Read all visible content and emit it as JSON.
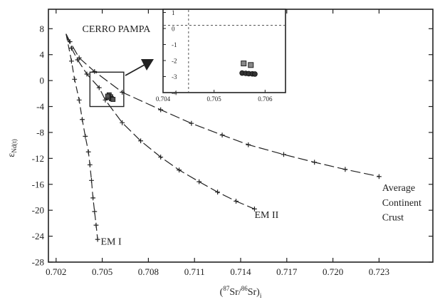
{
  "chart_data": [
    {
      "type": "line",
      "title": "",
      "xlabel_parts": {
        "prefix": "(",
        "sup1": "87",
        "mid": "Sr/",
        "sup2": "86",
        "tail": "Sr)",
        "sub": "i"
      },
      "ylabel_parts": {
        "main": "ε",
        "sub": "Nd(t)"
      },
      "xlim": [
        0.7015,
        0.7265
      ],
      "ylim": [
        -28,
        11
      ],
      "xticks": [
        0.702,
        0.705,
        0.708,
        0.711,
        0.714,
        0.717,
        0.72,
        0.723
      ],
      "xtick_labels": [
        "0.702",
        "0.705",
        "0.708",
        "0.711",
        "0.714",
        "0.717",
        "0.720",
        "0.723"
      ],
      "yticks": [
        8,
        4,
        0,
        -4,
        -8,
        -12,
        -16,
        -20,
        -24,
        -28
      ],
      "ytick_labels": [
        "8",
        "4",
        "0",
        "-4",
        "-8",
        "-12",
        "-16",
        "-20",
        "-24",
        "-28"
      ],
      "grid": false,
      "series": [
        {
          "name": "Average Continent Crust",
          "dash": "14,5",
          "points": [
            [
              0.70265,
              7.2
            ],
            [
              0.7029,
              6
            ],
            [
              0.7035,
              3.5
            ],
            [
              0.7045,
              1.4
            ],
            [
              0.7063,
              -1.8
            ],
            [
              0.7088,
              -4.5
            ],
            [
              0.7108,
              -6.6
            ],
            [
              0.7128,
              -8.4
            ],
            [
              0.7145,
              -9.9
            ],
            [
              0.7168,
              -11.4
            ],
            [
              0.7188,
              -12.6
            ],
            [
              0.7208,
              -13.7
            ],
            [
              0.723,
              -14.8
            ]
          ]
        },
        {
          "name": "EM II",
          "dash": "14,5",
          "points": [
            [
              0.70265,
              7.2
            ],
            [
              0.703,
              5
            ],
            [
              0.7034,
              3.2
            ],
            [
              0.704,
              1.0
            ],
            [
              0.7048,
              -1.1
            ],
            [
              0.7052,
              -3.0
            ],
            [
              0.7063,
              -6.5
            ],
            [
              0.7075,
              -9.3
            ],
            [
              0.7088,
              -11.8
            ],
            [
              0.71,
              -13.8
            ],
            [
              0.7113,
              -15.6
            ],
            [
              0.7125,
              -17.2
            ],
            [
              0.7137,
              -18.6
            ],
            [
              0.7149,
              -19.8
            ]
          ]
        },
        {
          "name": "EM I",
          "dash": "10,5",
          "points": [
            [
              0.70265,
              7.2
            ],
            [
              0.703,
              3.0
            ],
            [
              0.7032,
              0.2
            ],
            [
              0.7035,
              -3.0
            ],
            [
              0.7037,
              -6.0
            ],
            [
              0.7039,
              -8.6
            ],
            [
              0.7041,
              -11.0
            ],
            [
              0.7042,
              -13.0
            ],
            [
              0.7043,
              -15.4
            ],
            [
              0.7044,
              -18.1
            ],
            [
              0.7045,
              -20.2
            ],
            [
              0.7046,
              -22.3
            ],
            [
              0.7047,
              -24.5
            ]
          ]
        }
      ],
      "samples": {
        "name": "CERRO PAMPA",
        "points": [
          [
            0.70545,
            -2.2
          ],
          [
            0.70555,
            -2.5
          ],
          [
            0.7056,
            -2.8
          ],
          [
            0.7054,
            -2.6
          ],
          [
            0.7057,
            -2.9
          ],
          [
            0.70535,
            -2.4
          ]
        ]
      },
      "annotations": [
        {
          "text": "CERRO PAMPA",
          "x": 0.7037,
          "y": 7.5
        },
        {
          "text": "EM I",
          "x": 0.7049,
          "y": -25.3
        },
        {
          "text": "EM II",
          "x": 0.7149,
          "y": -21.2
        },
        {
          "text": "Average",
          "x": 0.7232,
          "y": -17.0
        },
        {
          "text": "Continent",
          "x": 0.7232,
          "y": -19.3
        },
        {
          "text": "Crust",
          "x": 0.7232,
          "y": -21.6
        }
      ],
      "zoom_box": {
        "x": [
          0.7042,
          0.7064
        ],
        "y": [
          -4.0,
          1.3
        ]
      }
    },
    {
      "type": "scatter",
      "title": "",
      "inset": true,
      "xlim": [
        0.704,
        0.7064
      ],
      "ylim": [
        -4,
        1.2
      ],
      "xticks": [
        0.704,
        0.705,
        0.706
      ],
      "xtick_labels": [
        "0.704",
        "0.705",
        "0.706"
      ],
      "yticks": [
        1,
        0,
        -1,
        -2,
        -3,
        -4
      ],
      "ytick_labels": [
        "1",
        "0",
        "-1",
        "-2",
        "-3",
        "-4"
      ],
      "reference_lines": {
        "x": 0.7045,
        "y": 0.2
      },
      "series": [
        {
          "name": "",
          "marker": "square",
          "points": [
            [
              0.70558,
              -2.18
            ],
            [
              0.70572,
              -2.28
            ]
          ]
        },
        {
          "name": "",
          "marker": "circle",
          "points": [
            [
              0.70555,
              -2.78
            ],
            [
              0.70562,
              -2.8
            ],
            [
              0.70568,
              -2.82
            ],
            [
              0.70575,
              -2.83
            ],
            [
              0.7058,
              -2.84
            ]
          ]
        }
      ]
    }
  ]
}
